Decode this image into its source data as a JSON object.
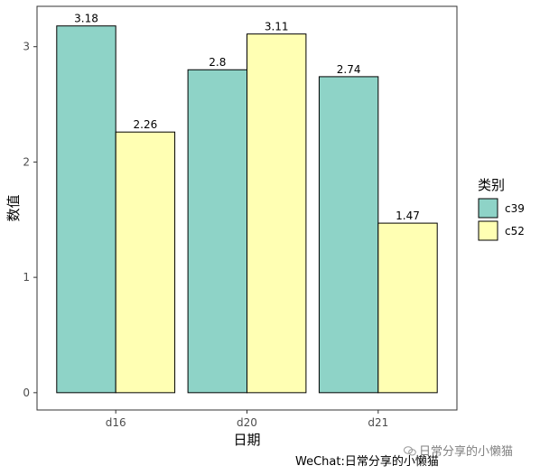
{
  "chart_data": {
    "type": "bar",
    "categories": [
      "d16",
      "d20",
      "d21"
    ],
    "series": [
      {
        "name": "c39",
        "values": [
          3.18,
          2.8,
          2.74
        ],
        "color": "#8ED3C7"
      },
      {
        "name": "c52",
        "values": [
          2.26,
          3.11,
          1.47
        ],
        "color": "#FFFFB3"
      }
    ],
    "data_labels": [
      [
        "3.18",
        "2.8",
        "2.74"
      ],
      [
        "2.26",
        "3.11",
        "1.47"
      ]
    ],
    "xlabel": "日期",
    "ylabel": "数值",
    "ylim": [
      -0.15,
      3.35
    ],
    "yticks": [
      0,
      1,
      2,
      3
    ],
    "legend": {
      "title": "类别",
      "position": "right"
    },
    "grid": false,
    "bar_outline_color": "#000000"
  },
  "footer": {
    "caption": "WeChat:日常分享的小懒猫",
    "watermark": "日常分享的小懒猫"
  }
}
